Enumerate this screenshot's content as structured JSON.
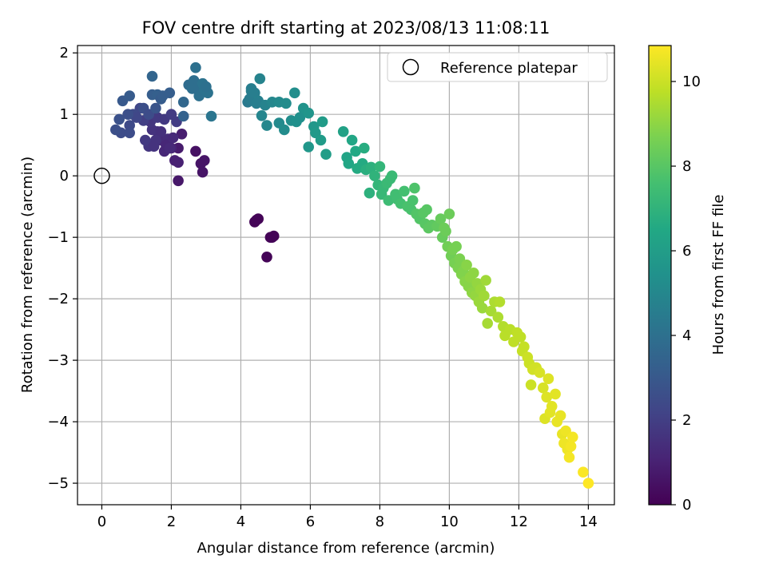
{
  "chart_data": {
    "type": "scatter",
    "title": "FOV centre drift starting at 2023/08/13 11:08:11",
    "xlabel": "Angular distance from reference (arcmin)",
    "ylabel": "Rotation from reference (arcmin)",
    "xlim": [
      -0.7,
      14.75
    ],
    "ylim": [
      -5.35,
      2.12
    ],
    "xticks": [
      0,
      2,
      4,
      6,
      8,
      10,
      12,
      14
    ],
    "xtick_labels": [
      "0",
      "2",
      "4",
      "6",
      "8",
      "10",
      "12",
      "14"
    ],
    "yticks": [
      -5,
      -4,
      -3,
      -2,
      -1,
      0,
      1,
      2
    ],
    "ytick_labels": [
      "−5",
      "−4",
      "−3",
      "−2",
      "−1",
      "0",
      "1",
      "2"
    ],
    "grid": true,
    "legend": {
      "position": "top-right",
      "entries": [
        "Reference platepar"
      ]
    },
    "reference_point": {
      "x": 0,
      "y": 0,
      "marker": "open-circle"
    },
    "colorbar": {
      "label": "Hours from first FF file",
      "range": [
        0,
        10.85
      ],
      "ticks": [
        0,
        2,
        4,
        6,
        8,
        10
      ],
      "tick_labels": [
        "0",
        "2",
        "4",
        "6",
        "8",
        "10"
      ],
      "colormap": "viridis"
    },
    "points": [
      [
        4.5,
        -0.7,
        0.1
      ],
      [
        4.4,
        -0.75,
        0.1
      ],
      [
        4.45,
        -0.72,
        0.1
      ],
      [
        4.85,
        -1.0,
        0.1
      ],
      [
        4.95,
        -0.98,
        0.1
      ],
      [
        4.75,
        -1.32,
        0.1
      ],
      [
        4.9,
        -1.0,
        0.1
      ],
      [
        2.7,
        0.4,
        0.5
      ],
      [
        2.85,
        0.2,
        0.6
      ],
      [
        2.9,
        0.06,
        0.6
      ],
      [
        2.95,
        0.25,
        0.6
      ],
      [
        2.2,
        -0.08,
        0.7
      ],
      [
        2.2,
        0.45,
        0.8
      ],
      [
        2.3,
        0.68,
        0.9
      ],
      [
        1.8,
        0.4,
        1.2
      ],
      [
        2.0,
        0.45,
        1.1
      ],
      [
        2.1,
        0.25,
        1.0
      ],
      [
        2.2,
        0.22,
        1.0
      ],
      [
        1.7,
        0.58,
        1.3
      ],
      [
        1.9,
        0.6,
        1.4
      ],
      [
        1.6,
        0.72,
        1.5
      ],
      [
        1.45,
        0.75,
        1.6
      ],
      [
        1.7,
        0.72,
        1.5
      ],
      [
        1.85,
        0.5,
        1.2
      ],
      [
        2.05,
        0.62,
        1.3
      ],
      [
        1.35,
        0.48,
        1.7
      ],
      [
        1.55,
        0.58,
        1.6
      ],
      [
        1.95,
        0.45,
        1.3
      ],
      [
        1.25,
        0.58,
        1.8
      ],
      [
        1.4,
        0.88,
        1.7
      ],
      [
        1.6,
        0.95,
        1.8
      ],
      [
        1.8,
        0.92,
        1.8
      ],
      [
        2.0,
        1.0,
        1.9
      ],
      [
        2.15,
        0.88,
        1.9
      ],
      [
        1.5,
        0.48,
        1.6
      ],
      [
        1.2,
        0.9,
        2.0
      ],
      [
        1.1,
        1.1,
        2.3
      ],
      [
        0.9,
        1.0,
        2.4
      ],
      [
        1.0,
        0.95,
        2.3
      ],
      [
        0.8,
        0.82,
        2.4
      ],
      [
        0.55,
        0.7,
        2.5
      ],
      [
        0.8,
        0.7,
        2.5
      ],
      [
        0.4,
        0.75,
        2.6
      ],
      [
        0.5,
        0.92,
        2.7
      ],
      [
        0.75,
        1.0,
        2.6
      ],
      [
        0.6,
        1.22,
        3.0
      ],
      [
        0.8,
        1.3,
        3.1
      ],
      [
        1.2,
        1.1,
        2.6
      ],
      [
        1.35,
        1.0,
        2.5
      ],
      [
        1.45,
        1.32,
        3.2
      ],
      [
        1.55,
        1.1,
        2.8
      ],
      [
        1.6,
        1.32,
        3.3
      ],
      [
        1.7,
        1.25,
        3.1
      ],
      [
        1.75,
        1.3,
        3.2
      ],
      [
        1.95,
        1.35,
        3.2
      ],
      [
        2.35,
        0.97,
        3.4
      ],
      [
        1.45,
        1.62,
        3.5
      ],
      [
        2.35,
        1.2,
        3.6
      ],
      [
        2.5,
        1.48,
        3.8
      ],
      [
        2.65,
        1.55,
        3.9
      ],
      [
        2.7,
        1.76,
        4.0
      ],
      [
        2.75,
        1.45,
        3.9
      ],
      [
        2.8,
        1.3,
        4.0
      ],
      [
        2.95,
        1.4,
        4.1
      ],
      [
        3.05,
        1.35,
        4.1
      ],
      [
        3.15,
        0.97,
        4.2
      ],
      [
        2.6,
        1.42,
        3.9
      ],
      [
        2.9,
        1.5,
        4.1
      ],
      [
        3.0,
        1.45,
        4.0
      ],
      [
        4.2,
        1.2,
        4.4
      ],
      [
        4.3,
        1.38,
        4.6
      ],
      [
        4.25,
        1.25,
        4.5
      ],
      [
        4.4,
        1.35,
        4.6
      ],
      [
        4.3,
        1.42,
        4.6
      ],
      [
        4.55,
        1.58,
        4.8
      ],
      [
        4.5,
        1.22,
        4.7
      ],
      [
        4.45,
        1.18,
        4.6
      ],
      [
        4.7,
        1.15,
        4.8
      ],
      [
        4.6,
        0.98,
        4.9
      ],
      [
        4.75,
        0.82,
        5.0
      ],
      [
        4.9,
        1.2,
        5.0
      ],
      [
        5.1,
        1.2,
        5.1
      ],
      [
        5.1,
        0.86,
        5.1
      ],
      [
        5.25,
        0.75,
        5.2
      ],
      [
        5.3,
        1.18,
        5.2
      ],
      [
        5.45,
        0.9,
        5.3
      ],
      [
        5.55,
        1.35,
        5.3
      ],
      [
        5.6,
        0.88,
        5.4
      ],
      [
        5.7,
        0.95,
        5.4
      ],
      [
        5.8,
        1.1,
        5.5
      ],
      [
        5.95,
        1.02,
        5.6
      ],
      [
        5.95,
        0.47,
        5.7
      ],
      [
        6.1,
        0.8,
        5.7
      ],
      [
        6.15,
        0.7,
        5.8
      ],
      [
        6.3,
        0.58,
        5.9
      ],
      [
        6.35,
        0.88,
        5.9
      ],
      [
        6.45,
        0.35,
        6.0
      ],
      [
        6.95,
        0.72,
        6.2
      ],
      [
        7.05,
        0.3,
        6.3
      ],
      [
        7.1,
        0.2,
        6.4
      ],
      [
        7.2,
        0.58,
        6.4
      ],
      [
        7.3,
        0.4,
        6.5
      ],
      [
        7.35,
        0.12,
        6.6
      ],
      [
        7.5,
        0.2,
        6.6
      ],
      [
        7.55,
        0.45,
        6.7
      ],
      [
        7.6,
        0.1,
        6.8
      ],
      [
        7.7,
        -0.28,
        6.9
      ],
      [
        7.75,
        0.14,
        6.9
      ],
      [
        7.85,
        0.0,
        7.0
      ],
      [
        7.95,
        -0.15,
        7.1
      ],
      [
        8.05,
        -0.3,
        7.2
      ],
      [
        8.0,
        0.15,
        7.1
      ],
      [
        8.1,
        -0.2,
        7.2
      ],
      [
        8.2,
        -0.12,
        7.3
      ],
      [
        8.25,
        -0.4,
        7.4
      ],
      [
        8.3,
        -0.05,
        7.3
      ],
      [
        8.35,
        0.0,
        7.3
      ],
      [
        8.45,
        -0.3,
        7.5
      ],
      [
        8.5,
        -0.38,
        7.5
      ],
      [
        8.6,
        -0.45,
        7.6
      ],
      [
        8.7,
        -0.25,
        7.6
      ],
      [
        8.8,
        -0.5,
        7.7
      ],
      [
        8.9,
        -0.55,
        7.7
      ],
      [
        8.95,
        -0.4,
        7.7
      ],
      [
        9.0,
        -0.2,
        7.8
      ],
      [
        9.05,
        -0.62,
        7.9
      ],
      [
        9.15,
        -0.7,
        7.9
      ],
      [
        9.25,
        -0.6,
        8.0
      ],
      [
        9.3,
        -0.78,
        8.0
      ],
      [
        9.35,
        -0.55,
        8.0
      ],
      [
        9.4,
        -0.85,
        8.1
      ],
      [
        9.5,
        -0.8,
        8.1
      ],
      [
        9.65,
        -0.82,
        8.2
      ],
      [
        9.75,
        -0.7,
        8.3
      ],
      [
        9.8,
        -1.0,
        8.3
      ],
      [
        9.85,
        -0.85,
        8.4
      ],
      [
        9.9,
        -0.9,
        8.4
      ],
      [
        10.0,
        -0.62,
        8.4
      ],
      [
        9.95,
        -1.15,
        8.5
      ],
      [
        10.05,
        -1.3,
        8.5
      ],
      [
        10.1,
        -1.2,
        8.6
      ],
      [
        10.15,
        -1.42,
        8.6
      ],
      [
        10.2,
        -1.15,
        8.6
      ],
      [
        10.25,
        -1.5,
        8.7
      ],
      [
        10.3,
        -1.35,
        8.7
      ],
      [
        10.35,
        -1.6,
        8.8
      ],
      [
        10.4,
        -1.55,
        8.8
      ],
      [
        10.45,
        -1.72,
        8.9
      ],
      [
        10.5,
        -1.45,
        8.9
      ],
      [
        10.55,
        -1.8,
        8.9
      ],
      [
        10.6,
        -1.65,
        9.0
      ],
      [
        10.65,
        -1.9,
        9.0
      ],
      [
        10.7,
        -1.58,
        9.0
      ],
      [
        10.75,
        -1.95,
        9.1
      ],
      [
        10.8,
        -1.75,
        9.1
      ],
      [
        10.85,
        -2.05,
        9.2
      ],
      [
        10.9,
        -1.85,
        9.2
      ],
      [
        10.95,
        -2.15,
        9.2
      ],
      [
        11.0,
        -1.95,
        9.3
      ],
      [
        11.05,
        -1.7,
        9.3
      ],
      [
        11.1,
        -2.4,
        9.4
      ],
      [
        11.2,
        -2.2,
        9.4
      ],
      [
        11.3,
        -2.05,
        9.5
      ],
      [
        11.4,
        -2.3,
        9.5
      ],
      [
        11.45,
        -2.05,
        9.6
      ],
      [
        11.55,
        -2.45,
        9.6
      ],
      [
        11.6,
        -2.6,
        9.7
      ],
      [
        11.75,
        -2.5,
        9.7
      ],
      [
        11.85,
        -2.7,
        9.8
      ],
      [
        11.95,
        -2.55,
        9.8
      ],
      [
        12.05,
        -2.62,
        9.8
      ],
      [
        12.1,
        -2.85,
        9.9
      ],
      [
        12.15,
        -2.78,
        9.9
      ],
      [
        12.25,
        -2.95,
        10.0
      ],
      [
        12.3,
        -3.05,
        10.0
      ],
      [
        12.35,
        -3.4,
        10.0
      ],
      [
        12.4,
        -3.15,
        10.1
      ],
      [
        12.5,
        -3.12,
        10.1
      ],
      [
        12.6,
        -3.2,
        10.2
      ],
      [
        12.7,
        -3.45,
        10.2
      ],
      [
        12.75,
        -3.95,
        10.3
      ],
      [
        12.8,
        -3.6,
        10.3
      ],
      [
        12.85,
        -3.3,
        10.3
      ],
      [
        12.9,
        -3.85,
        10.4
      ],
      [
        12.95,
        -3.75,
        10.4
      ],
      [
        13.05,
        -3.55,
        10.4
      ],
      [
        13.1,
        -4.0,
        10.5
      ],
      [
        13.2,
        -3.9,
        10.5
      ],
      [
        13.25,
        -4.2,
        10.5
      ],
      [
        13.3,
        -4.35,
        10.6
      ],
      [
        13.35,
        -4.15,
        10.6
      ],
      [
        13.4,
        -4.45,
        10.6
      ],
      [
        13.45,
        -4.58,
        10.7
      ],
      [
        13.5,
        -4.4,
        10.7
      ],
      [
        13.55,
        -4.25,
        10.7
      ],
      [
        13.85,
        -4.82,
        10.8
      ],
      [
        14.0,
        -5.0,
        10.85
      ]
    ]
  }
}
